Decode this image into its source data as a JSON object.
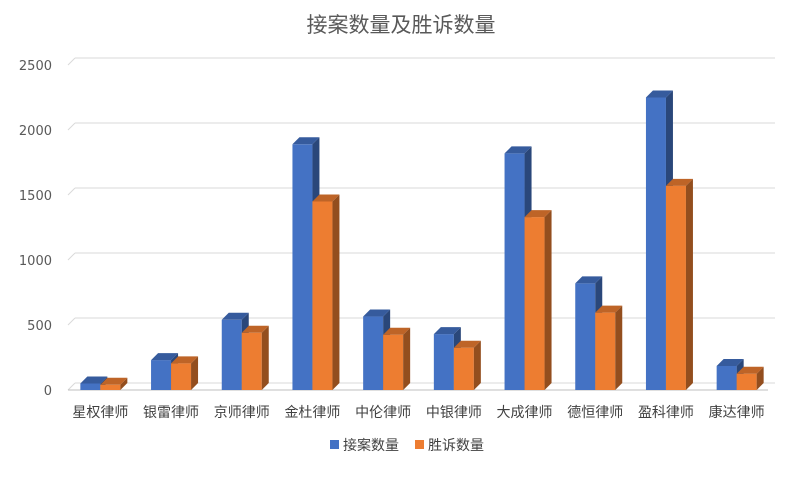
{
  "chart_data": {
    "type": "bar",
    "title": "接案数量及胜诉数量",
    "xlabel": "",
    "ylabel": "",
    "ylim": [
      0,
      2500
    ],
    "yticks": [
      0,
      500,
      1000,
      1500,
      2000,
      2500
    ],
    "grid": true,
    "legend_position": "bottom",
    "categories": [
      "星权律师",
      "银雷律师",
      "京师律师",
      "金杜律师",
      "中伦律师",
      "中银律师",
      "大成律师",
      "德恒律师",
      "盈科律师",
      "康达律师"
    ],
    "series": [
      {
        "name": "接案数量",
        "color": "#4472C4",
        "values": [
          50,
          230,
          540,
          1890,
          565,
          430,
          1820,
          820,
          2250,
          185
        ]
      },
      {
        "name": "胜诉数量",
        "color": "#ED7D31",
        "values": [
          40,
          205,
          440,
          1450,
          425,
          325,
          1330,
          595,
          1570,
          125
        ]
      }
    ]
  }
}
